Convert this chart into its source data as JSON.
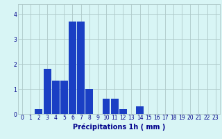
{
  "values": [
    0,
    0,
    0.2,
    1.8,
    1.35,
    1.35,
    3.7,
    3.7,
    1.0,
    0,
    0.6,
    0.6,
    0.2,
    0,
    0.3,
    0,
    0,
    0,
    0,
    0,
    0,
    0,
    0,
    0
  ],
  "xlabel": "Précipitations 1h ( mm )",
  "ylim": [
    0,
    4.4
  ],
  "xlim": [
    -0.5,
    23.5
  ],
  "yticks": [
    0,
    1,
    2,
    3,
    4
  ],
  "xticks": [
    0,
    1,
    2,
    3,
    4,
    5,
    6,
    7,
    8,
    9,
    10,
    11,
    12,
    13,
    14,
    15,
    16,
    17,
    18,
    19,
    20,
    21,
    22,
    23
  ],
  "bar_color": "#1a3fc4",
  "background_color": "#d8f5f5",
  "grid_color": "#aec8c8",
  "tick_label_color": "#00008b",
  "xlabel_color": "#00008b",
  "xlabel_fontsize": 7.0,
  "tick_fontsize": 5.5,
  "bar_width": 0.9
}
